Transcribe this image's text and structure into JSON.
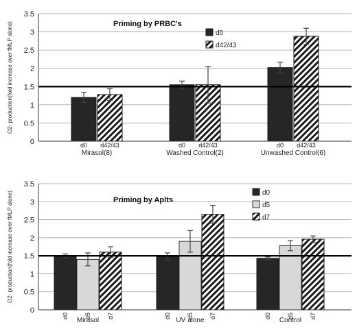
{
  "chart_data": [
    {
      "type": "bar",
      "title": "Priming by PRBC's",
      "ylabel": "O2- production(fold increase over fMLP alone)",
      "ylim": [
        0,
        3.5
      ],
      "yticks": [
        "0",
        "0.5",
        "1",
        "1.5",
        "2",
        "2.5",
        "3",
        "3.5"
      ],
      "reference_line": 1.5,
      "legend": [
        {
          "label": "d0",
          "pattern": "solid"
        },
        {
          "label": "d42/43",
          "pattern": "hatched"
        }
      ],
      "groups": [
        {
          "label": "Mirasol(8)",
          "bars": [
            {
              "series": "d0",
              "tick": "d0",
              "value": 1.2,
              "error": 0.14
            },
            {
              "series": "d42/43",
              "tick": "d42/43",
              "value": 1.28,
              "error": 0.16
            }
          ]
        },
        {
          "label": "Washed Control(2)",
          "bars": [
            {
              "series": "d0",
              "tick": "d0",
              "value": 1.55,
              "error": 0.1
            },
            {
              "series": "d42/43",
              "tick": "d42/43",
              "value": 1.55,
              "error": 0.5
            }
          ]
        },
        {
          "label": "Unwashed Control(6)",
          "bars": [
            {
              "series": "d0",
              "tick": "d0",
              "value": 2.02,
              "error": 0.15
            },
            {
              "series": "d42/43",
              "tick": "d42/43",
              "value": 2.88,
              "error": 0.22
            }
          ]
        }
      ]
    },
    {
      "type": "bar",
      "title": "Priming by Aplts",
      "ylabel": "O2- production(fold increase over fMLP alone)",
      "ylim": [
        0,
        3.5
      ],
      "yticks": [
        "0",
        "0.5",
        "1",
        "1.5",
        "2",
        "2.5",
        "3",
        "3.5"
      ],
      "reference_line": 1.5,
      "legend": [
        {
          "label": "d0",
          "pattern": "solid"
        },
        {
          "label": "d5",
          "pattern": "light"
        },
        {
          "label": "d7",
          "pattern": "hatched"
        }
      ],
      "groups": [
        {
          "label": "Mirasol",
          "bars": [
            {
              "series": "d0",
              "tick": "d0",
              "value": 1.5,
              "error": 0.05
            },
            {
              "series": "d5",
              "tick": "d5",
              "value": 1.4,
              "error": 0.18
            },
            {
              "series": "d7",
              "tick": "d7",
              "value": 1.6,
              "error": 0.15
            }
          ]
        },
        {
          "label": "UV alone",
          "bars": [
            {
              "series": "d0",
              "tick": "d0",
              "value": 1.48,
              "error": 0.1
            },
            {
              "series": "d5",
              "tick": "d5",
              "value": 1.9,
              "error": 0.3
            },
            {
              "series": "d7",
              "tick": "d7",
              "value": 2.65,
              "error": 0.25
            }
          ]
        },
        {
          "label": "Control",
          "bars": [
            {
              "series": "d0",
              "tick": "d0",
              "value": 1.43,
              "error": 0.04
            },
            {
              "series": "d5",
              "tick": "d5",
              "value": 1.78,
              "error": 0.14
            },
            {
              "series": "d7",
              "tick": "d7",
              "value": 1.96,
              "error": 0.09
            }
          ]
        }
      ]
    }
  ]
}
